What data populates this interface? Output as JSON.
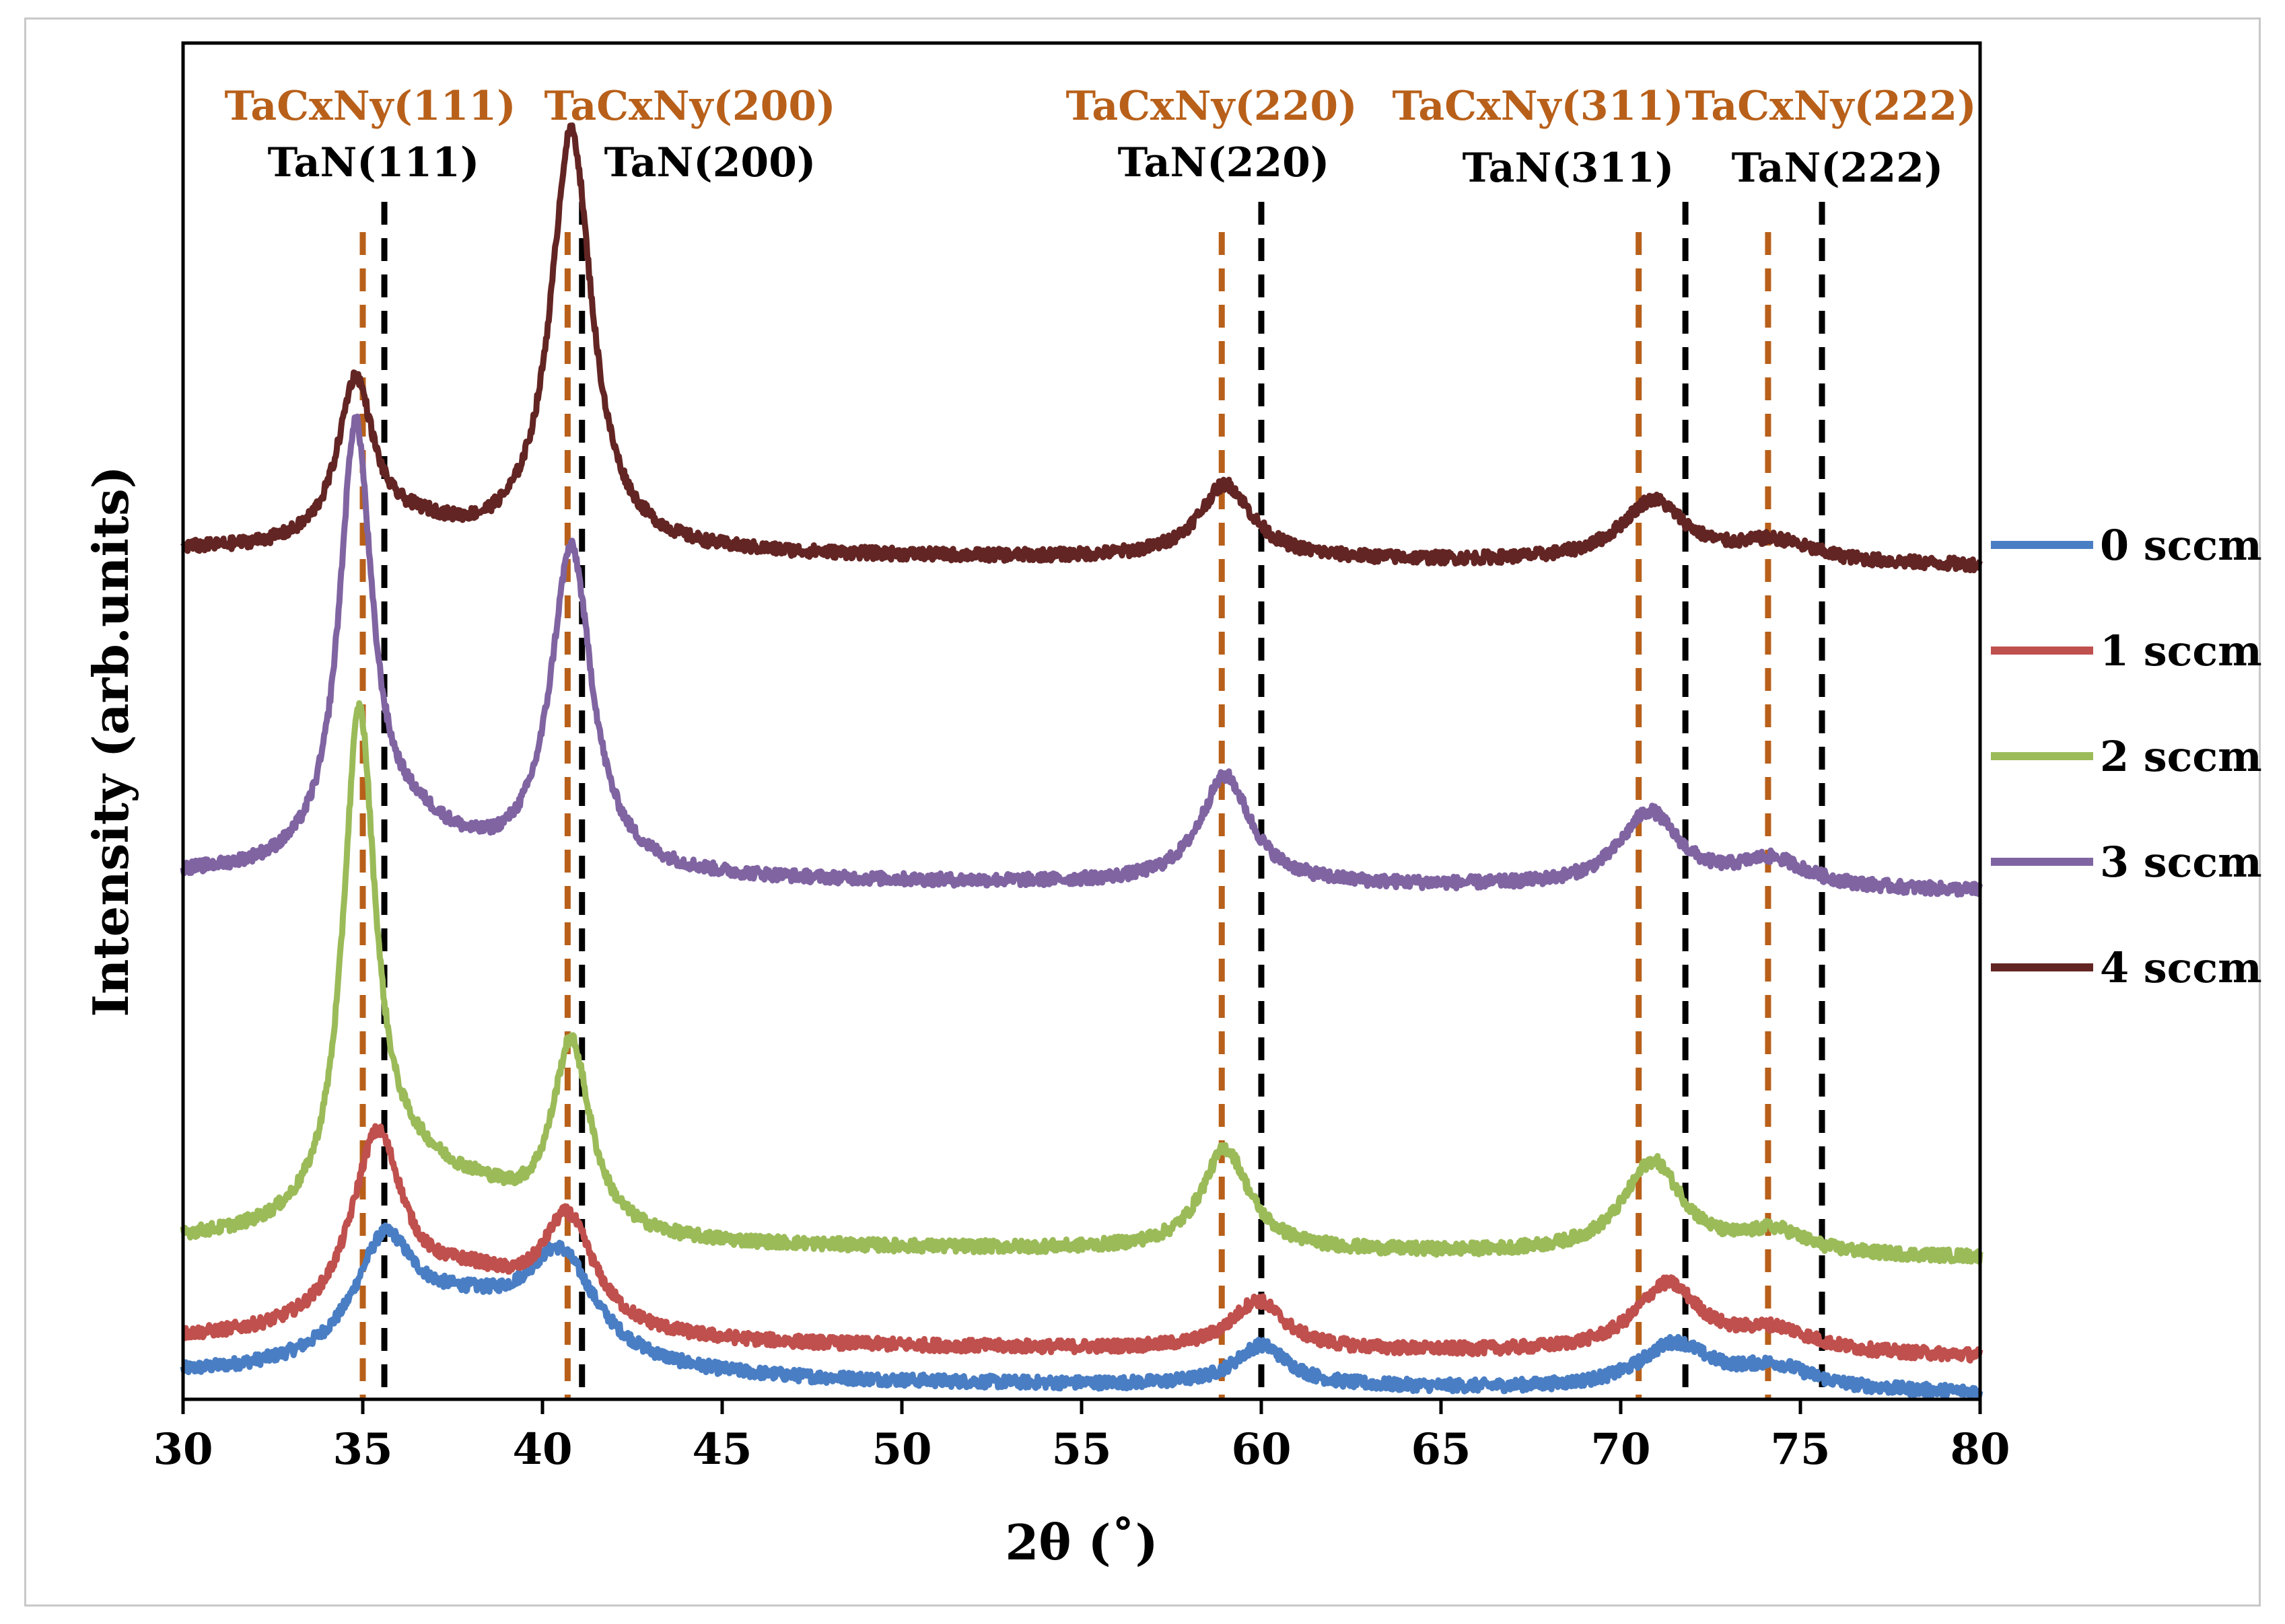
{
  "chart_data": {
    "type": "line",
    "title": "",
    "xlabel": "2θ (˚)",
    "ylabel": "Intensity (arb.units)",
    "xlim": [
      30,
      80
    ],
    "ylim": [
      0,
      100
    ],
    "x_ticks": [
      "30",
      "35",
      "40",
      "45",
      "50",
      "55",
      "60",
      "65",
      "70",
      "75",
      "80"
    ],
    "x_tick_values": [
      30,
      35,
      40,
      45,
      50,
      55,
      60,
      65,
      70,
      75,
      80
    ],
    "y_ticks_shown": false,
    "grid": false,
    "legend_position": "right",
    "series": [
      {
        "name": "0 sccm",
        "color": "#4a7ec4",
        "baseline": 1.5,
        "peaks": [
          [
            35.6,
            8.0,
            1.0
          ],
          [
            37.8,
            4.5,
            2.5
          ],
          [
            40.5,
            7.5,
            1.2
          ],
          [
            60.0,
            3.0,
            0.9
          ],
          [
            71.5,
            3.3,
            1.2
          ],
          [
            74.3,
            1.6,
            1.3
          ]
        ]
      },
      {
        "name": "1 sccm",
        "color": "#c0504d",
        "baseline": 4.2,
        "peaks": [
          [
            35.4,
            14.0,
            0.9
          ],
          [
            38.0,
            4.0,
            2.0
          ],
          [
            40.7,
            8.0,
            0.9
          ],
          [
            59.9,
            3.6,
            0.9
          ],
          [
            71.3,
            5.0,
            1.1
          ],
          [
            74.3,
            1.6,
            1.3
          ]
        ]
      },
      {
        "name": "2 sccm",
        "color": "#9bbb59",
        "baseline": 11.5,
        "peaks": [
          [
            34.9,
            37.0,
            0.55
          ],
          [
            36.4,
            4.0,
            1.6
          ],
          [
            38.3,
            2.0,
            1.5
          ],
          [
            40.8,
            14.0,
            0.65
          ],
          [
            59.0,
            7.5,
            0.8
          ],
          [
            70.9,
            6.8,
            1.0
          ],
          [
            74.3,
            1.6,
            1.0
          ]
        ]
      },
      {
        "name": "3 sccm",
        "color": "#8064a2",
        "baseline": 38.5,
        "peaks": [
          [
            34.8,
            32.0,
            0.55
          ],
          [
            36.4,
            3.0,
            1.6
          ],
          [
            40.8,
            24.0,
            0.7
          ],
          [
            59.0,
            8.0,
            0.85
          ],
          [
            70.8,
            5.5,
            1.0
          ],
          [
            74.2,
            2.0,
            1.2
          ]
        ]
      },
      {
        "name": "4 sccm",
        "color": "#632523",
        "baseline": 62.5,
        "peaks": [
          [
            34.8,
            12.0,
            0.6
          ],
          [
            36.5,
            1.5,
            1.5
          ],
          [
            40.8,
            31.0,
            0.7
          ],
          [
            59.0,
            5.5,
            0.9
          ],
          [
            70.9,
            4.5,
            1.1
          ],
          [
            74.3,
            1.5,
            1.3
          ]
        ]
      }
    ],
    "reference_lines": [
      {
        "label": "TaCxNy(111)",
        "x": 35.0,
        "set": "TaCxNy",
        "color": "#b8601a"
      },
      {
        "label": "TaCxNy(200)",
        "x": 40.7,
        "set": "TaCxNy",
        "color": "#b8601a"
      },
      {
        "label": "TaCxNy(220)",
        "x": 58.9,
        "set": "TaCxNy",
        "color": "#b8601a"
      },
      {
        "label": "TaCxNy(311)",
        "x": 70.5,
        "set": "TaCxNy",
        "color": "#b8601a"
      },
      {
        "label": "TaCxNy(222)",
        "x": 74.1,
        "set": "TaCxNy",
        "color": "#b8601a"
      },
      {
        "label": "TaN(111)",
        "x": 35.6,
        "set": "TaN",
        "color": "#000000"
      },
      {
        "label": "TaN(200)",
        "x": 41.1,
        "set": "TaN",
        "color": "#000000"
      },
      {
        "label": "TaN(220)",
        "x": 60.0,
        "set": "TaN",
        "color": "#000000"
      },
      {
        "label": "TaN(311)",
        "x": 71.8,
        "set": "TaN",
        "color": "#000000"
      },
      {
        "label": "TaN(222)",
        "x": 75.6,
        "set": "TaN",
        "color": "#000000"
      }
    ]
  }
}
